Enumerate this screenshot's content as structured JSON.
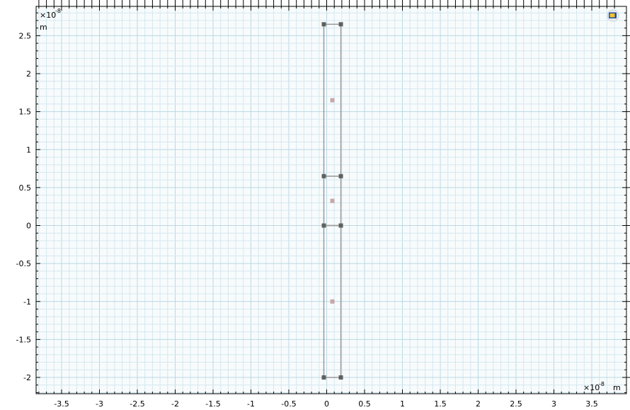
{
  "chart_data": {
    "type": "geometry-plot",
    "x_axis": {
      "ticks": [
        -3.5,
        -3,
        -2.5,
        -2,
        -1.5,
        -1,
        -0.5,
        0,
        0.5,
        1,
        1.5,
        2,
        2.5,
        3,
        3.5
      ],
      "tick_labels": [
        "-3.5",
        "-3",
        "-2.5",
        "-2",
        "-1.5",
        "-1",
        "-0.5",
        "0",
        "0.5",
        "1",
        "1.5",
        "2",
        "2.5",
        "3",
        "3.5"
      ],
      "multiplier_base": "×10",
      "multiplier_exp": "-8",
      "unit": "m",
      "range": [
        -3.85,
        3.85
      ]
    },
    "y_axis": {
      "ticks": [
        -2,
        -1.5,
        -1,
        -0.5,
        0,
        0.5,
        1,
        1.5,
        2,
        2.5
      ],
      "tick_labels": [
        "-2",
        "-1.5",
        "-1",
        "-0.5",
        "0",
        "0.5",
        "1",
        "1.5",
        "2",
        "2.5"
      ],
      "multiplier_base": "×10",
      "multiplier_exp": "-8",
      "unit": "m",
      "range": [
        -2.2,
        2.9
      ]
    },
    "grid": true,
    "geometry": {
      "rectangles": [
        {
          "x0": 0,
          "x1": 0.15,
          "y0": 0.65,
          "y1": 2.65
        },
        {
          "x0": 0,
          "x1": 0.15,
          "y0": 0,
          "y1": 0.65
        },
        {
          "x0": 0,
          "x1": 0.15,
          "y0": -2,
          "y1": 0
        }
      ],
      "vertices": [
        [
          0,
          2.65
        ],
        [
          0.15,
          2.65
        ],
        [
          0,
          0.65
        ],
        [
          0.15,
          0.65
        ],
        [
          0,
          0
        ],
        [
          0.15,
          0
        ],
        [
          0,
          -2
        ],
        [
          0.15,
          -2
        ]
      ],
      "domain_points": [
        [
          0.075,
          1.65
        ],
        [
          0.075,
          0.325
        ],
        [
          0.075,
          -1
        ]
      ]
    },
    "colors": {
      "background": "#f8fbfc",
      "grid_minor": "#d4e8ef",
      "grid_major": "#b9d8e3",
      "edge": "#9a9a9a",
      "vertex": "#606060",
      "domain_point": "#c6a8a8"
    }
  },
  "toolbar_icon": "view-orientation-icon"
}
